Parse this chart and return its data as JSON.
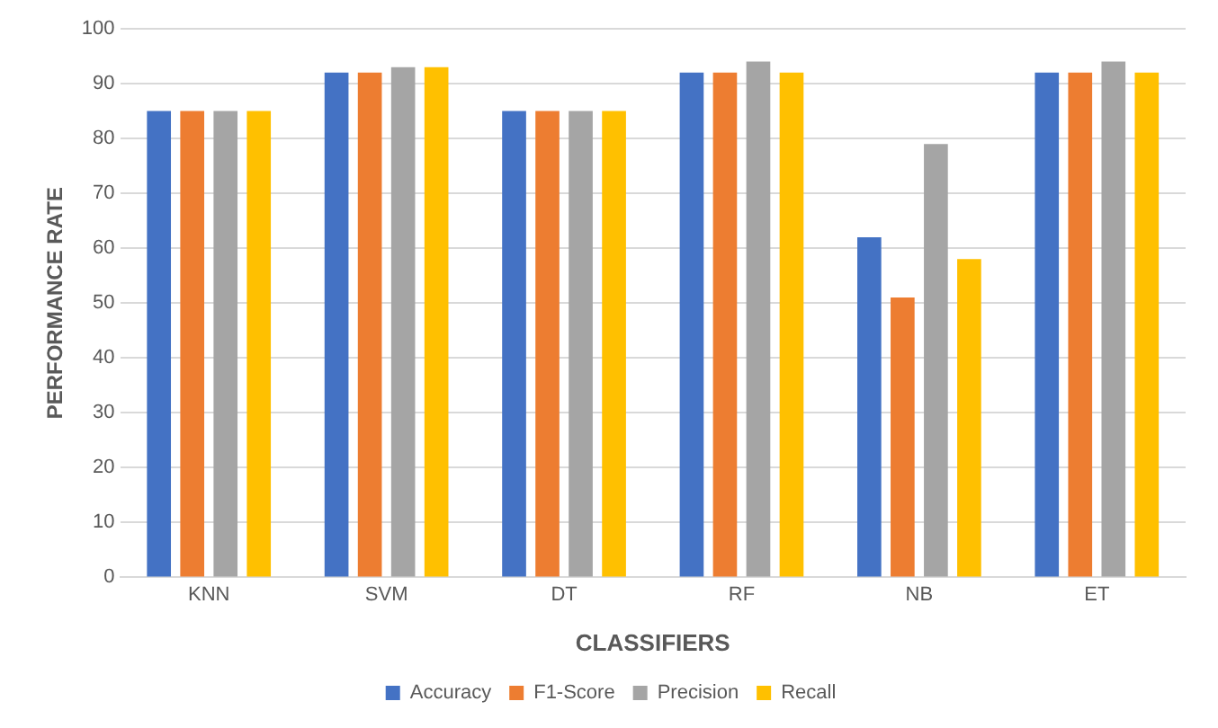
{
  "chart_data": {
    "type": "bar",
    "xlabel": "CLASSIFIERS",
    "ylabel": "PERFORMANCE RATE",
    "categories": [
      "KNN",
      "SVM",
      "DT",
      "RF",
      "NB",
      "ET"
    ],
    "series": [
      {
        "name": "Accuracy",
        "color": "#4472c4",
        "values": [
          85,
          92,
          85,
          92,
          62,
          92
        ]
      },
      {
        "name": "F1-Score",
        "color": "#ed7d31",
        "values": [
          85,
          92,
          85,
          92,
          51,
          92
        ]
      },
      {
        "name": "Precision",
        "color": "#a5a5a5",
        "values": [
          85,
          93,
          85,
          94,
          79,
          94
        ]
      },
      {
        "name": "Recall",
        "color": "#ffc000",
        "values": [
          85,
          93,
          85,
          92,
          58,
          92
        ]
      }
    ],
    "ylim": [
      0,
      100
    ],
    "yticks": [
      0,
      10,
      20,
      30,
      40,
      50,
      60,
      70,
      80,
      90,
      100
    ],
    "grid": "y",
    "legend": "bottom"
  }
}
